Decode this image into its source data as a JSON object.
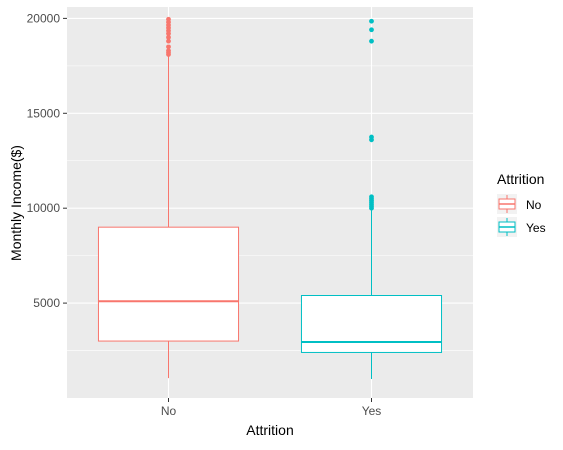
{
  "chart_data": {
    "type": "boxplot",
    "xlabel": "Attrition",
    "ylabel": "Monthly  Income($)",
    "categories": [
      "No",
      "Yes"
    ],
    "ylim": [
      0,
      20600
    ],
    "yticks": [
      5000,
      10000,
      15000,
      20000
    ],
    "ytick_labels": [
      "5000",
      "10000",
      "15000",
      "20000"
    ],
    "grid": true,
    "legend": {
      "title": "Attrition",
      "placement": "right",
      "entries": [
        "No",
        "Yes"
      ]
    },
    "series": [
      {
        "category": "No",
        "color": "#F8766D",
        "whisker_low": 1050,
        "q1": 3000,
        "median": 5100,
        "q3": 9000,
        "whisker_high": 18000,
        "outliers": [
          18100,
          18200,
          18300,
          18500,
          18800,
          19000,
          19200,
          19350,
          19500,
          19650,
          19800,
          19950
        ]
      },
      {
        "category": "Yes",
        "color": "#00BFC4",
        "whisker_low": 1000,
        "q1": 2400,
        "median": 2950,
        "q3": 5400,
        "whisker_high": 9900,
        "outliers": [
          10000,
          10100,
          10200,
          10300,
          10400,
          10500,
          10600,
          13600,
          13750,
          18800,
          19400,
          19850
        ]
      }
    ]
  }
}
